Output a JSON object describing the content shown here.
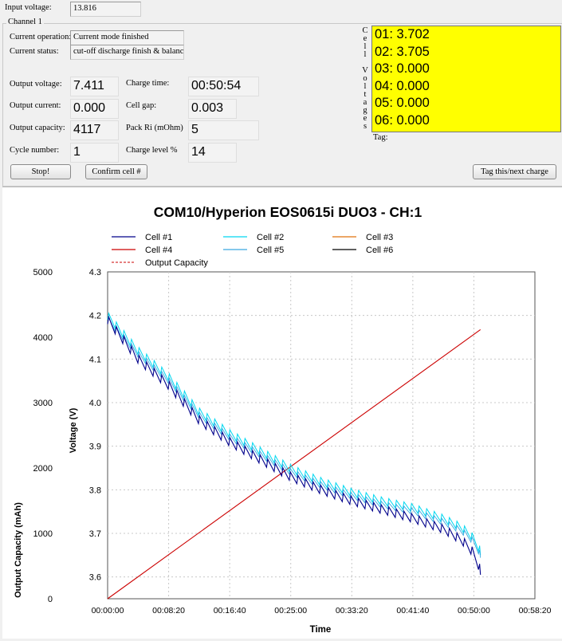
{
  "panel": {
    "input_voltage_label": "Input voltage:",
    "input_voltage_value": "13.816",
    "channel_group_label": "Channel 1",
    "current_operation_label": "Current operation:",
    "current_operation_value": "Current mode finished",
    "current_status_label": "Current status:",
    "current_status_value": "cut-off discharge finish & balance",
    "output_voltage_label": "Output voltage:",
    "output_voltage_value": "7.411",
    "output_current_label": "Output current:",
    "output_current_value": "0.000",
    "output_capacity_label": "Output capacity:",
    "output_capacity_value": "4117",
    "cycle_number_label": "Cycle number:",
    "cycle_number_value": "1",
    "charge_time_label": "Charge time:",
    "charge_time_value": "00:50:54",
    "cell_gap_label": "Cell gap:",
    "cell_gap_value": "0.003",
    "pack_ri_label": "Pack Ri (mOhm)",
    "pack_ri_value": "5",
    "charge_level_label": "Charge level %",
    "charge_level_value": "14",
    "cell_voltages_vertical_label": [
      "C",
      "e",
      "l",
      "l",
      "",
      "V",
      "o",
      "l",
      "t",
      "a",
      "g",
      "e",
      "s"
    ],
    "cell_voltages": [
      "01: 3.702",
      "02: 3.705",
      "03: 0.000",
      "04: 0.000",
      "05: 0.000",
      "06: 0.000"
    ],
    "tag_label": "Tag:",
    "stop_button": "Stop!",
    "confirm_button": "Confirm cell #",
    "tag_button": "Tag this/next charge",
    "cell_box_color": "#ffff00"
  },
  "chart_data": {
    "type": "line",
    "title": "COM10/Hyperion EOS0615i DUO3 - CH:1",
    "xlabel": "Time",
    "ylabel_left": "Output Capacity (mAh)",
    "ylabel_right": "Voltage (V)",
    "x_ticks": [
      "00:00:00",
      "00:08:20",
      "00:16:40",
      "00:25:00",
      "00:33:20",
      "00:41:40",
      "00:50:00",
      "00:58:20"
    ],
    "x_range_seconds": [
      0,
      3500
    ],
    "ylim_capacity": [
      0,
      5000
    ],
    "capacity_ticks": [
      "0",
      "1000",
      "2000",
      "3000",
      "4000",
      "5000"
    ],
    "ylim_voltage": [
      3.55,
      4.3
    ],
    "voltage_ticks": [
      "3.6",
      "3.7",
      "3.8",
      "3.9",
      "4.0",
      "4.1",
      "4.2",
      "4.3"
    ],
    "grid": true,
    "legend": [
      {
        "name": "Cell #1",
        "color": "#00008b",
        "style": "solid"
      },
      {
        "name": "Cell #2",
        "color": "#00d8f0",
        "style": "solid"
      },
      {
        "name": "Cell #3",
        "color": "#e0700a",
        "style": "solid"
      },
      {
        "name": "Cell #4",
        "color": "#cc0000",
        "style": "solid"
      },
      {
        "name": "Cell #5",
        "color": "#3aa8e0",
        "style": "solid"
      },
      {
        "name": "Cell #6",
        "color": "#000000",
        "style": "solid"
      },
      {
        "name": "Output Capacity",
        "color": "#cc0000",
        "style": "dashed"
      }
    ],
    "series": [
      {
        "name": "Output Capacity",
        "axis": "capacity",
        "x": [
          0,
          3054
        ],
        "y": [
          0,
          4117
        ]
      },
      {
        "name": "Cell #1",
        "axis": "voltage",
        "x": [
          0,
          250,
          500,
          750,
          1000,
          1250,
          1500,
          1750,
          2000,
          2250,
          2500,
          2750,
          2900,
          3000,
          3054
        ],
        "y": [
          4.18,
          4.09,
          4.03,
          3.95,
          3.9,
          3.86,
          3.82,
          3.79,
          3.765,
          3.745,
          3.725,
          3.7,
          3.675,
          3.645,
          3.605
        ]
      },
      {
        "name": "Cell #2",
        "axis": "voltage",
        "x": [
          0,
          250,
          500,
          750,
          1000,
          1250,
          1500,
          1750,
          2000,
          2250,
          2500,
          2750,
          2900,
          3000,
          3054
        ],
        "y": [
          4.19,
          4.11,
          4.05,
          3.97,
          3.92,
          3.88,
          3.84,
          3.81,
          3.785,
          3.765,
          3.75,
          3.725,
          3.705,
          3.68,
          3.65
        ]
      }
    ]
  }
}
